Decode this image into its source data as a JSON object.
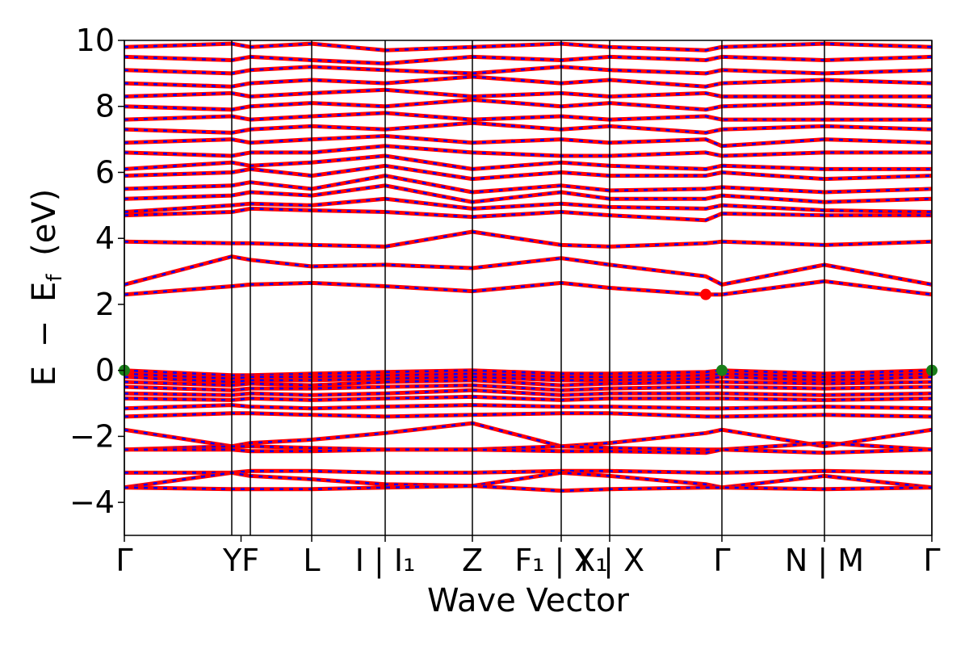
{
  "chart_data": {
    "type": "line",
    "title": "",
    "xlabel": "Wave Vector",
    "ylabel": "E − E_f (eV)",
    "ylabel_parts": {
      "e": "E",
      "minus": "−",
      "ef_main": "E",
      "ef_sub": "f",
      "unit": "(eV)"
    },
    "ylim": [
      -5,
      10
    ],
    "y_ticks": [
      {
        "value": -4,
        "label": "−4"
      },
      {
        "value": -2,
        "label": "−2"
      },
      {
        "value": 0,
        "label": "0"
      },
      {
        "value": 2,
        "label": "2"
      },
      {
        "value": 4,
        "label": "4"
      },
      {
        "value": 6,
        "label": "6"
      },
      {
        "value": 8,
        "label": "8"
      },
      {
        "value": 10,
        "label": "10"
      }
    ],
    "xlim": [
      0,
      1
    ],
    "kpath_positions": [
      0,
      0.133,
      0.156,
      0.232,
      0.323,
      0.431,
      0.541,
      0.601,
      0.74,
      0.867,
      1.0
    ],
    "x_ticks": [
      {
        "x": 0,
        "label": "Γ"
      },
      {
        "x": 0.1445,
        "label": "YF"
      },
      {
        "x": 0.232,
        "label": "L"
      },
      {
        "x": 0.323,
        "label": "I | I₁"
      },
      {
        "x": 0.431,
        "label": "Z"
      },
      {
        "x": 0.541,
        "label": "F₁ | X₁"
      },
      {
        "x": 0.601,
        "label": "Y | X"
      },
      {
        "x": 0.74,
        "label": "Γ"
      },
      {
        "x": 0.867,
        "label": "N | M"
      },
      {
        "x": 1.0,
        "label": "Γ"
      }
    ],
    "series": [
      {
        "name": "",
        "color": "#ff0000",
        "style": "solid"
      },
      {
        "name": "",
        "color": "#0000ff",
        "style": "dashed"
      }
    ],
    "bands_sample_x": [
      0,
      0.133,
      0.156,
      0.232,
      0.323,
      0.431,
      0.541,
      0.601,
      0.72,
      0.74,
      0.867,
      1.0
    ],
    "conduction_bands": [
      [
        2.3,
        2.55,
        2.6,
        2.65,
        2.55,
        2.4,
        2.65,
        2.5,
        2.3,
        2.3,
        2.7,
        2.3
      ],
      [
        2.6,
        3.45,
        3.35,
        3.15,
        3.2,
        3.1,
        3.4,
        3.2,
        2.85,
        2.6,
        3.2,
        2.6
      ],
      [
        3.9,
        3.85,
        3.85,
        3.8,
        3.75,
        4.2,
        3.8,
        3.75,
        3.85,
        3.9,
        3.8,
        3.9
      ],
      [
        4.7,
        4.8,
        4.9,
        4.85,
        4.8,
        4.65,
        4.8,
        4.7,
        4.55,
        4.75,
        4.7,
        4.7
      ],
      [
        4.8,
        5.0,
        5.05,
        5.0,
        5.2,
        4.9,
        5.05,
        4.95,
        4.9,
        5.0,
        4.85,
        4.8
      ],
      [
        5.2,
        5.3,
        5.4,
        5.3,
        5.6,
        5.1,
        5.4,
        5.2,
        5.2,
        5.3,
        5.1,
        5.2
      ],
      [
        5.5,
        5.6,
        5.7,
        5.5,
        5.9,
        5.4,
        5.6,
        5.45,
        5.5,
        5.55,
        5.4,
        5.5
      ],
      [
        5.9,
        6.0,
        6.1,
        5.9,
        6.2,
        5.8,
        6.0,
        5.9,
        5.9,
        6.0,
        5.8,
        5.9
      ],
      [
        6.1,
        6.3,
        6.2,
        6.3,
        6.5,
        6.1,
        6.3,
        6.2,
        6.1,
        6.2,
        6.1,
        6.1
      ],
      [
        6.6,
        6.5,
        6.6,
        6.6,
        6.8,
        6.6,
        6.5,
        6.5,
        6.6,
        6.5,
        6.6,
        6.6
      ],
      [
        6.9,
        7.0,
        6.9,
        7.0,
        7.1,
        6.9,
        7.0,
        6.9,
        7.0,
        6.8,
        7.0,
        6.9
      ],
      [
        7.3,
        7.2,
        7.3,
        7.4,
        7.3,
        7.5,
        7.3,
        7.4,
        7.2,
        7.3,
        7.4,
        7.3
      ],
      [
        7.6,
        7.7,
        7.6,
        7.7,
        7.8,
        7.6,
        7.7,
        7.6,
        7.7,
        7.6,
        7.6,
        7.6
      ],
      [
        8.0,
        7.9,
        8.0,
        8.1,
        8.0,
        8.2,
        8.0,
        8.1,
        7.9,
        8.0,
        8.1,
        8.0
      ],
      [
        8.3,
        8.4,
        8.3,
        8.4,
        8.5,
        8.3,
        8.4,
        8.3,
        8.4,
        8.3,
        8.3,
        8.3
      ],
      [
        8.7,
        8.6,
        8.7,
        8.8,
        8.7,
        8.9,
        8.7,
        8.8,
        8.6,
        8.7,
        8.8,
        8.7
      ],
      [
        9.1,
        9.0,
        9.1,
        9.2,
        9.1,
        9.0,
        9.2,
        9.1,
        9.0,
        9.1,
        9.0,
        9.1
      ],
      [
        9.5,
        9.4,
        9.5,
        9.4,
        9.3,
        9.5,
        9.4,
        9.5,
        9.4,
        9.5,
        9.4,
        9.5
      ],
      [
        9.8,
        9.9,
        9.8,
        9.9,
        9.7,
        9.8,
        9.9,
        9.8,
        9.7,
        9.8,
        9.9,
        9.8
      ]
    ],
    "valence_bands": [
      [
        0.0,
        -0.15,
        -0.15,
        -0.1,
        -0.05,
        0.0,
        -0.1,
        -0.1,
        -0.05,
        0.0,
        -0.1,
        0.0
      ],
      [
        -0.1,
        -0.25,
        -0.2,
        -0.2,
        -0.15,
        -0.1,
        -0.2,
        -0.2,
        -0.15,
        -0.1,
        -0.2,
        -0.1
      ],
      [
        -0.2,
        -0.35,
        -0.3,
        -0.3,
        -0.25,
        -0.2,
        -0.3,
        -0.3,
        -0.25,
        -0.2,
        -0.3,
        -0.2
      ],
      [
        -0.35,
        -0.45,
        -0.4,
        -0.45,
        -0.35,
        -0.3,
        -0.45,
        -0.4,
        -0.35,
        -0.35,
        -0.4,
        -0.35
      ],
      [
        -0.5,
        -0.6,
        -0.55,
        -0.55,
        -0.5,
        -0.45,
        -0.6,
        -0.55,
        -0.5,
        -0.5,
        -0.55,
        -0.5
      ],
      [
        -0.7,
        -0.75,
        -0.7,
        -0.75,
        -0.7,
        -0.6,
        -0.75,
        -0.7,
        -0.7,
        -0.7,
        -0.75,
        -0.7
      ],
      [
        -0.85,
        -0.9,
        -0.85,
        -0.9,
        -0.85,
        -0.8,
        -0.9,
        -0.85,
        -0.85,
        -0.85,
        -0.9,
        -0.85
      ],
      [
        -1.15,
        -1.05,
        -1.1,
        -1.15,
        -1.1,
        -1.05,
        -1.1,
        -1.1,
        -1.15,
        -1.15,
        -1.1,
        -1.15
      ],
      [
        -1.4,
        -1.3,
        -1.3,
        -1.35,
        -1.4,
        -1.35,
        -1.3,
        -1.3,
        -1.4,
        -1.4,
        -1.35,
        -1.4
      ],
      [
        -1.8,
        -2.3,
        -2.2,
        -2.1,
        -1.9,
        -1.6,
        -2.3,
        -2.2,
        -1.9,
        -1.8,
        -2.3,
        -1.8
      ],
      [
        -2.4,
        -2.3,
        -2.3,
        -2.35,
        -2.4,
        -2.4,
        -2.3,
        -2.35,
        -2.4,
        -2.4,
        -2.2,
        -2.4
      ],
      [
        -2.4,
        -2.4,
        -2.45,
        -2.45,
        -2.4,
        -2.4,
        -2.45,
        -2.45,
        -2.5,
        -2.4,
        -2.5,
        -2.4
      ],
      [
        -3.1,
        -3.1,
        -3.05,
        -3.05,
        -3.1,
        -3.1,
        -3.05,
        -3.05,
        -3.1,
        -3.1,
        -3.05,
        -3.1
      ],
      [
        -3.55,
        -3.1,
        -3.2,
        -3.3,
        -3.45,
        -3.5,
        -3.1,
        -3.2,
        -3.45,
        -3.55,
        -3.2,
        -3.55
      ],
      [
        -3.55,
        -3.6,
        -3.6,
        -3.6,
        -3.55,
        -3.5,
        -3.65,
        -3.6,
        -3.55,
        -3.55,
        -3.6,
        -3.55
      ]
    ],
    "markers": [
      {
        "x": 0.0,
        "y": 0.0,
        "color": "#1a7f1a",
        "role": "VBM"
      },
      {
        "x": 0.74,
        "y": 0.0,
        "color": "#1a7f1a",
        "role": "VBM"
      },
      {
        "x": 1.0,
        "y": 0.0,
        "color": "#1a7f1a",
        "role": "VBM"
      },
      {
        "x": 0.72,
        "y": 2.3,
        "color": "#ff0000",
        "role": "CBM"
      }
    ]
  }
}
